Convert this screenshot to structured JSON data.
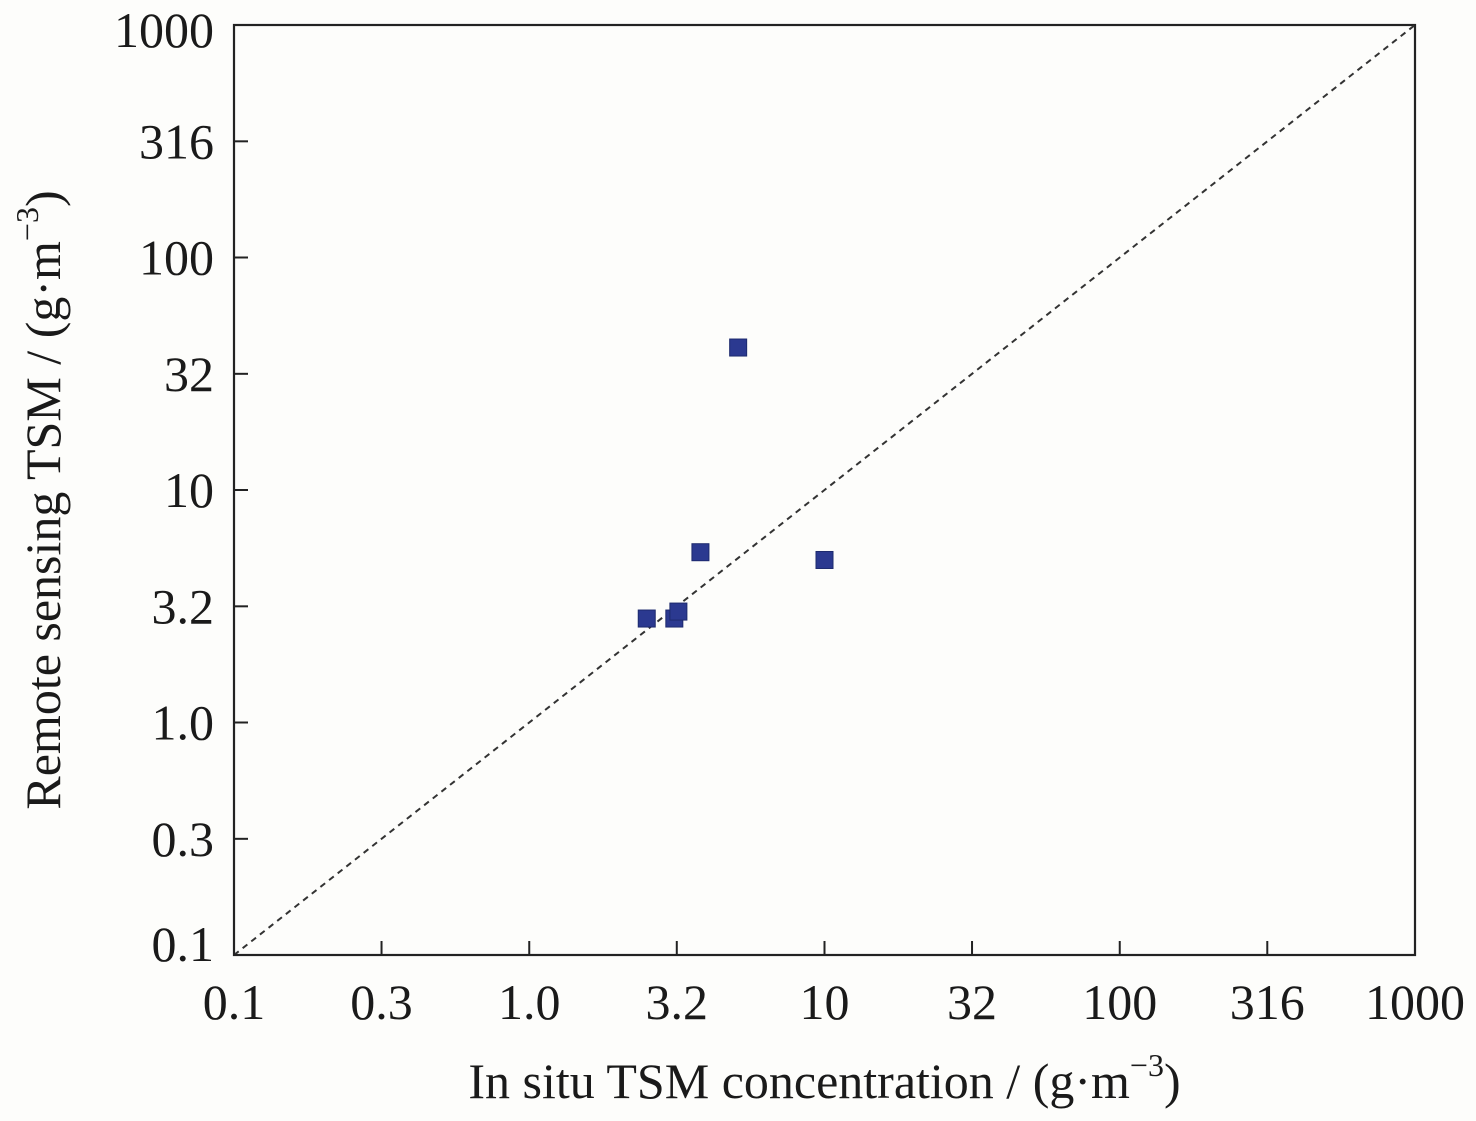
{
  "chart_data": {
    "type": "scatter",
    "title": "",
    "xlabel": "In situ TSM concentration / (g·m",
    "xlabel_sup": "−3",
    "xlabel_close": ")",
    "ylabel": "Remote sensing TSM / (g·m",
    "ylabel_sup": "−3",
    "ylabel_close": ")",
    "x_scale": "log",
    "y_scale": "log",
    "xlim": [
      0.1,
      1000
    ],
    "ylim": [
      0.1,
      1000
    ],
    "x_ticks": [
      {
        "value": 0.1,
        "label": "0.1"
      },
      {
        "value": 0.316,
        "label": "0.3"
      },
      {
        "value": 1,
        "label": "1.0"
      },
      {
        "value": 3.16,
        "label": "3.2"
      },
      {
        "value": 10,
        "label": "10"
      },
      {
        "value": 31.6,
        "label": "32"
      },
      {
        "value": 100,
        "label": "100"
      },
      {
        "value": 316,
        "label": "316"
      },
      {
        "value": 1000,
        "label": "1000"
      }
    ],
    "y_ticks": [
      {
        "value": 0.1,
        "label": "0.1"
      },
      {
        "value": 0.316,
        "label": "0.3"
      },
      {
        "value": 1,
        "label": "1.0"
      },
      {
        "value": 3.16,
        "label": "3.2"
      },
      {
        "value": 10,
        "label": "10"
      },
      {
        "value": 31.6,
        "label": "32"
      },
      {
        "value": 100,
        "label": "100"
      },
      {
        "value": 316,
        "label": "316"
      },
      {
        "value": 1000,
        "label": "1000"
      }
    ],
    "reference_line": {
      "style": "dashed",
      "from": [
        0.1,
        0.1
      ],
      "to": [
        1000,
        1000
      ]
    },
    "marker": {
      "shape": "square",
      "color": "#2b3990"
    },
    "points": [
      {
        "x": 2.5,
        "y": 2.8
      },
      {
        "x": 3.1,
        "y": 2.8
      },
      {
        "x": 3.2,
        "y": 3.0
      },
      {
        "x": 3.8,
        "y": 5.4
      },
      {
        "x": 5.1,
        "y": 41.0
      },
      {
        "x": 10.0,
        "y": 5.0
      }
    ],
    "grid": false,
    "legend": "none"
  }
}
